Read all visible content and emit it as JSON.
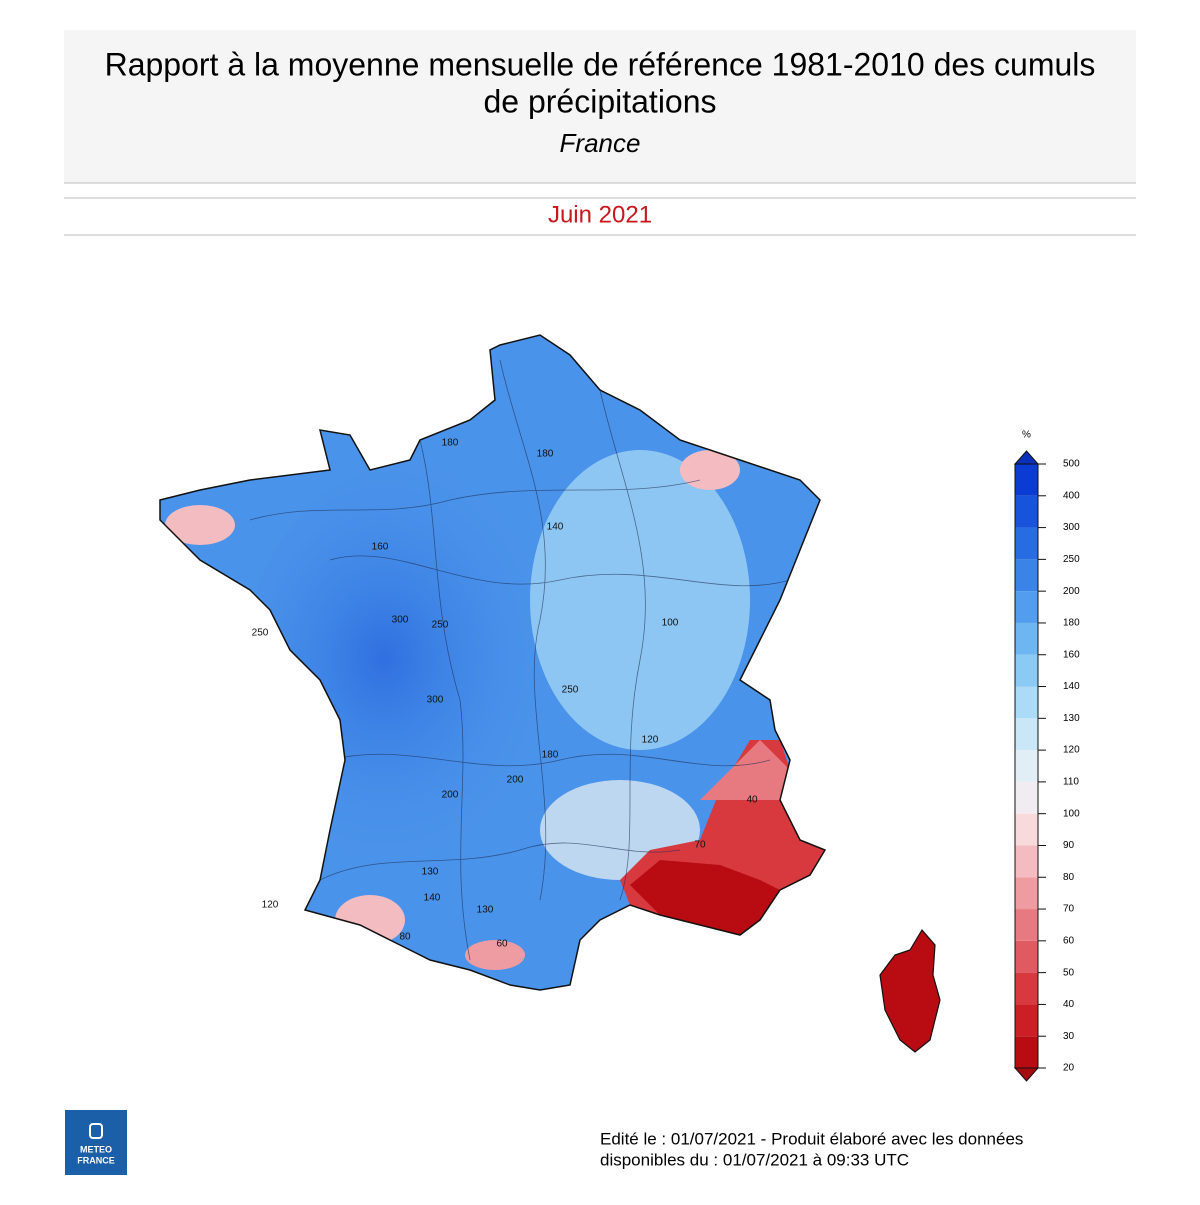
{
  "header": {
    "title_lines": [
      "Rapport à la moyenne mensuelle de référence 1981-2010 des cumuls",
      "de précipitations"
    ],
    "region": "France",
    "period": "Juin 2021"
  },
  "legend": {
    "unit": "%",
    "ticks": [
      20,
      30,
      40,
      50,
      60,
      70,
      80,
      90,
      100,
      110,
      120,
      130,
      140,
      160,
      180,
      200,
      250,
      300,
      400,
      500
    ],
    "colors": [
      "#b80c12",
      "#cc1f25",
      "#d8393f",
      "#e05a61",
      "#e77a81",
      "#ee9ba1",
      "#f4bcc1",
      "#f8dadd",
      "#f1ecf1",
      "#e2eef6",
      "#c9e7f7",
      "#abdbf7",
      "#8bcaf4",
      "#6db6f1",
      "#529ded",
      "#3a84e8",
      "#286ce2",
      "#1853db",
      "#0a3bd2"
    ],
    "under_color": "#a50a0f",
    "over_color": "#0a2fb8"
  },
  "map": {
    "contour_labels": [
      "180",
      "160",
      "250",
      "300",
      "300",
      "250",
      "200",
      "140",
      "130",
      "180",
      "120",
      "130",
      "140",
      "200",
      "250",
      "180",
      "100",
      "60",
      "70",
      "40",
      "120",
      "80"
    ]
  },
  "footer": {
    "lines": [
      "Edité le : 01/07/2021 - Produit élaboré avec les données",
      "disponibles du : 01/07/2021 à 09:33 UTC"
    ]
  },
  "logo": {
    "lines": [
      "METEO",
      "FRANCE"
    ]
  }
}
